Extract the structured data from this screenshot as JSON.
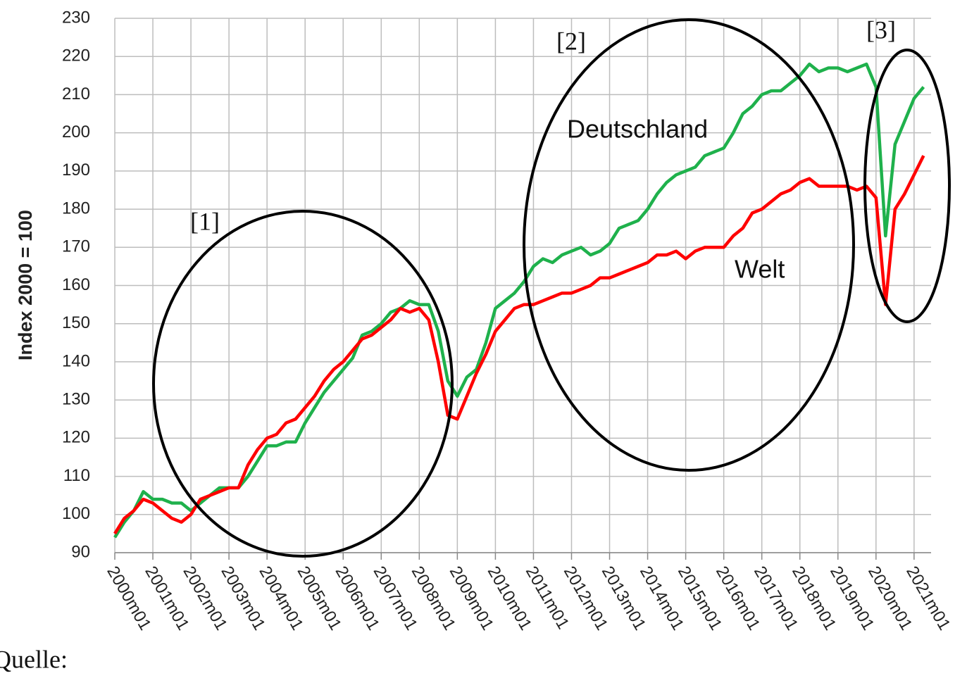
{
  "chart_data": {
    "type": "line",
    "y_label": "Index 2000 = 100",
    "categories": [
      "2000m01",
      null,
      null,
      null,
      "2001m01",
      null,
      null,
      null,
      "2002m01",
      null,
      null,
      null,
      "2003m01",
      null,
      null,
      null,
      "2004m01",
      null,
      null,
      null,
      "2005m01",
      null,
      null,
      null,
      "2006m01",
      null,
      null,
      null,
      "2007m01",
      null,
      null,
      null,
      "2008m01",
      null,
      null,
      null,
      "2009m01",
      null,
      null,
      null,
      "2010m01",
      null,
      null,
      null,
      "2011m01",
      null,
      null,
      null,
      "2012m01",
      null,
      null,
      null,
      "2013m01",
      null,
      null,
      null,
      "2014m01",
      null,
      null,
      null,
      "2015m01",
      null,
      null,
      null,
      "2016m01",
      null,
      null,
      null,
      "2017m01",
      null,
      null,
      null,
      "2018m01",
      null,
      null,
      null,
      "2019m01",
      null,
      null,
      null,
      "2020m01",
      null,
      null,
      null,
      "2021m01",
      null
    ],
    "series": [
      {
        "name": "Deutschland",
        "color": "#1fb14c",
        "values": [
          94,
          98,
          101,
          106,
          104,
          104,
          103,
          103,
          101,
          103,
          105,
          107,
          107,
          107,
          110,
          114,
          118,
          118,
          119,
          119,
          124,
          128,
          132,
          135,
          138,
          141,
          147,
          148,
          150,
          153,
          154,
          156,
          155,
          155,
          148,
          135,
          131,
          136,
          138,
          145,
          154,
          156,
          158,
          161,
          165,
          167,
          166,
          168,
          169,
          170,
          168,
          169,
          171,
          175,
          176,
          177,
          180,
          184,
          187,
          189,
          190,
          191,
          194,
          195,
          196,
          200,
          205,
          207,
          210,
          211,
          211,
          213,
          215,
          218,
          216,
          217,
          217,
          216,
          217,
          218,
          212,
          173,
          197,
          203,
          209,
          212
        ]
      },
      {
        "name": "Welt",
        "color": "#ff0000",
        "values": [
          95,
          99,
          101,
          104,
          103,
          101,
          99,
          98,
          100,
          104,
          105,
          106,
          107,
          107,
          113,
          117,
          120,
          121,
          124,
          125,
          128,
          131,
          135,
          138,
          140,
          143,
          146,
          147,
          149,
          151,
          154,
          153,
          154,
          151,
          140,
          126,
          125,
          131,
          137,
          142,
          148,
          151,
          154,
          155,
          155,
          156,
          157,
          158,
          158,
          159,
          160,
          162,
          162,
          163,
          164,
          165,
          166,
          168,
          168,
          169,
          167,
          169,
          170,
          170,
          170,
          173,
          175,
          179,
          180,
          182,
          184,
          185,
          187,
          188,
          186,
          186,
          186,
          186,
          185,
          186,
          183,
          155,
          180,
          184,
          189,
          194
        ]
      }
    ],
    "ylim": [
      90,
      230
    ],
    "yticks": [
      90,
      100,
      110,
      120,
      130,
      140,
      150,
      160,
      170,
      180,
      190,
      200,
      210,
      220,
      230
    ],
    "grid": true,
    "annotations": [
      "[1]",
      "[2]",
      "[3]"
    ],
    "source": "Quelle:"
  }
}
